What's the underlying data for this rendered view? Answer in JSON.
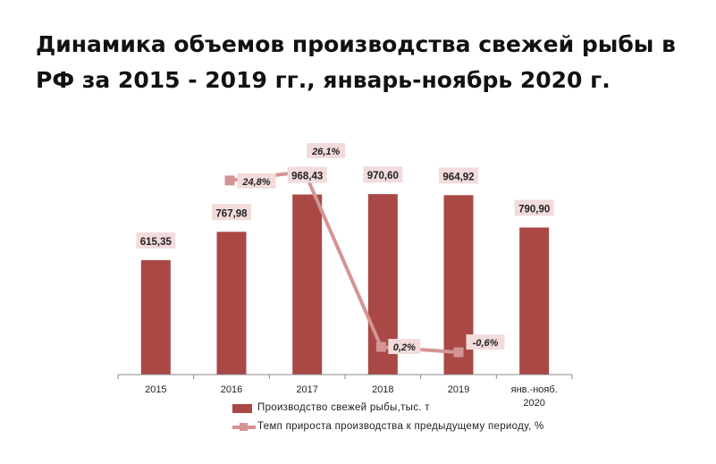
{
  "title": "Динамика объемов производства свежей рыбы в РФ за 2015 - 2019 гг., январь-ноябрь 2020 г.",
  "colors": {
    "bar": "#a94845",
    "line": "#d49494",
    "label_bg": "#f2dcdb",
    "axis": "#888888"
  },
  "chart_data": {
    "type": "bar",
    "title": "",
    "categories": [
      "2015",
      "2016",
      "2017",
      "2018",
      "2019",
      "янв.-нояб. 2020"
    ],
    "series": [
      {
        "name": "Производство свежей рыбы,тыс. т",
        "type": "bar",
        "values": [
          615.35,
          767.98,
          968.43,
          970.6,
          964.92,
          790.9
        ],
        "labels": [
          "615,35",
          "767,98",
          "968,43",
          "970,60",
          "964,92",
          "790,90"
        ]
      },
      {
        "name": "Темп прироста производства к предыдущему периоду, %",
        "type": "line",
        "axis": "secondary",
        "values": [
          null,
          24.8,
          26.1,
          0.2,
          -0.6,
          null
        ],
        "labels": [
          "",
          "24,8%",
          "26,1%",
          "0,2%",
          "-0,6%",
          ""
        ]
      }
    ],
    "ylim": [
      0,
      1250
    ],
    "y2lim": [
      -5,
      30
    ],
    "grid": false,
    "legend": "bottom"
  }
}
